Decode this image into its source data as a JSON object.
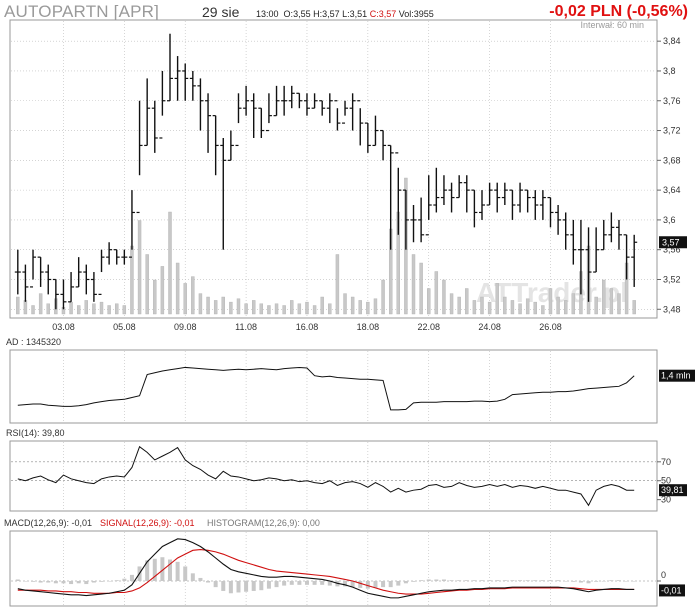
{
  "header": {
    "title": "AUTOPARTN [APR]",
    "date": "29 sie",
    "time": "13:00",
    "open_label": "O:",
    "open": "3,55",
    "high_label": "H:",
    "high": "3,57",
    "low_label": "L:",
    "low": "3,51",
    "close_label": "C:",
    "close": "3,57",
    "volume_label": "Vol:",
    "volume": "3955",
    "change": "-0,02 PLN (-0,56%)",
    "interval": "Interwał: 60 min"
  },
  "watermark": "ATTrader.pl",
  "colors": {
    "price": "#111111",
    "volume": "#c8c8c8",
    "macd_line": "#111111",
    "signal_line": "#d01010",
    "histogram": "#c8c8c8",
    "grid": "#bbbbbb",
    "change_negative": "#e01010"
  },
  "chart_data": [
    {
      "type": "candlestick",
      "name": "price",
      "x_ticks": [
        "03.08",
        "05.08",
        "09.08",
        "11.08",
        "16.08",
        "18.08",
        "22.08",
        "24.08",
        "26.08"
      ],
      "x_tick_positions": [
        6,
        14,
        22,
        30,
        38,
        46,
        54,
        62,
        70
      ],
      "y_ticks": [
        "3,84",
        "3,8",
        "3,76",
        "3,72",
        "3,68",
        "3,64",
        "3,6",
        "3,56",
        "3,52",
        "3,48"
      ],
      "y_tick_values": [
        3.84,
        3.8,
        3.76,
        3.72,
        3.68,
        3.64,
        3.6,
        3.56,
        3.52,
        3.48
      ],
      "ylim": [
        3.475,
        3.855
      ],
      "last_value_label": "3,57",
      "last_value": 3.57,
      "close": [
        3.53,
        3.51,
        3.55,
        3.53,
        3.52,
        3.5,
        3.49,
        3.51,
        3.53,
        3.52,
        3.5,
        3.55,
        3.56,
        3.55,
        3.55,
        3.61,
        3.7,
        3.75,
        3.71,
        3.76,
        3.79,
        3.8,
        3.79,
        3.78,
        3.76,
        3.74,
        3.7,
        3.68,
        3.7,
        3.75,
        3.76,
        3.75,
        3.72,
        3.74,
        3.76,
        3.76,
        3.77,
        3.76,
        3.75,
        3.76,
        3.75,
        3.76,
        3.73,
        3.75,
        3.76,
        3.73,
        3.7,
        3.72,
        3.7,
        3.69,
        3.64,
        3.6,
        3.6,
        3.58,
        3.62,
        3.63,
        3.64,
        3.63,
        3.65,
        3.64,
        3.61,
        3.62,
        3.64,
        3.63,
        3.64,
        3.62,
        3.64,
        3.63,
        3.62,
        3.63,
        3.61,
        3.6,
        3.58,
        3.56,
        3.56,
        3.53,
        3.56,
        3.58,
        3.59,
        3.58,
        3.55,
        3.57
      ],
      "high": [
        3.56,
        3.54,
        3.56,
        3.55,
        3.54,
        3.52,
        3.52,
        3.53,
        3.55,
        3.54,
        3.53,
        3.56,
        3.57,
        3.56,
        3.56,
        3.64,
        3.76,
        3.79,
        3.76,
        3.8,
        3.85,
        3.82,
        3.81,
        3.8,
        3.79,
        3.77,
        3.74,
        3.71,
        3.72,
        3.77,
        3.78,
        3.77,
        3.75,
        3.77,
        3.78,
        3.78,
        3.78,
        3.77,
        3.77,
        3.77,
        3.76,
        3.77,
        3.75,
        3.76,
        3.77,
        3.75,
        3.73,
        3.74,
        3.72,
        3.7,
        3.67,
        3.64,
        3.62,
        3.63,
        3.66,
        3.67,
        3.66,
        3.65,
        3.66,
        3.66,
        3.64,
        3.64,
        3.65,
        3.65,
        3.65,
        3.64,
        3.65,
        3.64,
        3.64,
        3.64,
        3.63,
        3.62,
        3.61,
        3.6,
        3.6,
        3.59,
        3.59,
        3.6,
        3.61,
        3.6,
        3.58,
        3.58
      ],
      "low": [
        3.5,
        3.49,
        3.52,
        3.51,
        3.5,
        3.48,
        3.48,
        3.49,
        3.51,
        3.5,
        3.49,
        3.53,
        3.54,
        3.54,
        3.54,
        3.56,
        3.66,
        3.7,
        3.69,
        3.74,
        3.76,
        3.76,
        3.76,
        3.76,
        3.72,
        3.69,
        3.66,
        3.56,
        3.68,
        3.73,
        3.74,
        3.71,
        3.71,
        3.73,
        3.74,
        3.74,
        3.75,
        3.75,
        3.74,
        3.75,
        3.74,
        3.73,
        3.72,
        3.74,
        3.72,
        3.7,
        3.69,
        3.7,
        3.68,
        3.56,
        3.58,
        3.56,
        3.57,
        3.57,
        3.6,
        3.61,
        3.62,
        3.61,
        3.63,
        3.61,
        3.59,
        3.6,
        3.62,
        3.61,
        3.62,
        3.6,
        3.61,
        3.61,
        3.6,
        3.6,
        3.59,
        3.58,
        3.56,
        3.54,
        3.5,
        3.49,
        3.53,
        3.56,
        3.57,
        3.56,
        3.52,
        3.51
      ],
      "volume": [
        0.1,
        0.08,
        0.05,
        0.12,
        0.06,
        0.09,
        0.04,
        0.07,
        0.05,
        0.08,
        0.06,
        0.07,
        0.05,
        0.06,
        0.05,
        0.4,
        0.55,
        0.35,
        0.2,
        0.28,
        0.6,
        0.3,
        0.18,
        0.22,
        0.12,
        0.1,
        0.08,
        0.1,
        0.07,
        0.09,
        0.06,
        0.08,
        0.06,
        0.05,
        0.06,
        0.05,
        0.08,
        0.06,
        0.07,
        0.05,
        0.1,
        0.06,
        0.35,
        0.12,
        0.1,
        0.08,
        0.07,
        0.09,
        0.2,
        0.5,
        0.6,
        0.8,
        0.35,
        0.3,
        0.15,
        0.25,
        0.2,
        0.12,
        0.1,
        0.15,
        0.08,
        0.1,
        0.07,
        0.18,
        0.1,
        0.08,
        0.06,
        0.09,
        0.07,
        0.05,
        0.15,
        0.1,
        0.08,
        0.12,
        0.25,
        0.4,
        0.1,
        0.2,
        0.15,
        0.12,
        0.3,
        0.08
      ],
      "volume_scale_note": ""
    },
    {
      "type": "line",
      "name": "AD",
      "label": "AD : 1345320",
      "last_value_label": "1,4 mln",
      "ylim": [
        0,
        1
      ],
      "values": [
        0.2,
        0.21,
        0.22,
        0.22,
        0.2,
        0.19,
        0.18,
        0.18,
        0.19,
        0.21,
        0.24,
        0.26,
        0.28,
        0.29,
        0.3,
        0.33,
        0.36,
        0.72,
        0.75,
        0.78,
        0.8,
        0.82,
        0.84,
        0.83,
        0.82,
        0.81,
        0.8,
        0.79,
        0.8,
        0.81,
        0.8,
        0.81,
        0.82,
        0.81,
        0.8,
        0.82,
        0.83,
        0.84,
        0.83,
        0.7,
        0.68,
        0.69,
        0.67,
        0.66,
        0.65,
        0.64,
        0.64,
        0.63,
        0.62,
        0.12,
        0.12,
        0.13,
        0.24,
        0.25,
        0.25,
        0.25,
        0.26,
        0.26,
        0.26,
        0.26,
        0.27,
        0.27,
        0.26,
        0.27,
        0.3,
        0.38,
        0.39,
        0.4,
        0.41,
        0.42,
        0.42,
        0.43,
        0.43,
        0.44,
        0.46,
        0.48,
        0.49,
        0.5,
        0.51,
        0.52,
        0.58,
        0.7
      ]
    },
    {
      "type": "line",
      "name": "RSI(14)",
      "label": "RSI(14): 39,80",
      "last_value_label": "39,81",
      "y_ticks": [
        "70",
        "50",
        "30"
      ],
      "y_tick_values": [
        70,
        50,
        30
      ],
      "ylim": [
        18,
        92
      ],
      "values": [
        52,
        50,
        53,
        55,
        51,
        48,
        56,
        52,
        50,
        48,
        47,
        52,
        54,
        55,
        54,
        64,
        86,
        80,
        72,
        76,
        80,
        85,
        72,
        66,
        62,
        56,
        52,
        60,
        55,
        54,
        52,
        50,
        51,
        53,
        52,
        50,
        51,
        49,
        50,
        48,
        47,
        50,
        45,
        48,
        49,
        47,
        43,
        48,
        44,
        38,
        42,
        38,
        40,
        41,
        45,
        46,
        43,
        44,
        48,
        45,
        43,
        44,
        46,
        44,
        46,
        43,
        45,
        44,
        42,
        44,
        42,
        40,
        40,
        38,
        36,
        24,
        40,
        44,
        46,
        44,
        40,
        40
      ]
    },
    {
      "type": "line",
      "name": "MACD(12,26,9)",
      "label": "MACD(12,26,9): -0,01",
      "signal_label": "SIGNAL(12,26,9): -0,01",
      "histogram_label": "HISTOGRAM(12,26,9): 0,00",
      "last_value_label": "-0,01",
      "y_ticks": [
        "0"
      ],
      "y_tick_values": [
        0
      ],
      "ylim": [
        -0.03,
        0.06
      ],
      "macd": [
        -0.01,
        -0.012,
        -0.013,
        -0.014,
        -0.015,
        -0.016,
        -0.017,
        -0.018,
        -0.018,
        -0.019,
        -0.018,
        -0.017,
        -0.016,
        -0.014,
        -0.012,
        -0.005,
        0.01,
        0.025,
        0.035,
        0.045,
        0.05,
        0.055,
        0.054,
        0.05,
        0.045,
        0.038,
        0.03,
        0.022,
        0.015,
        0.012,
        0.01,
        0.008,
        0.006,
        0.005,
        0.005,
        0.006,
        0.006,
        0.005,
        0.004,
        0.003,
        0.002,
        0.0,
        -0.003,
        -0.005,
        -0.008,
        -0.012,
        -0.016,
        -0.018,
        -0.02,
        -0.022,
        -0.022,
        -0.02,
        -0.018,
        -0.016,
        -0.014,
        -0.013,
        -0.012,
        -0.012,
        -0.011,
        -0.011,
        -0.01,
        -0.01,
        -0.009,
        -0.009,
        -0.009,
        -0.008,
        -0.008,
        -0.008,
        -0.008,
        -0.008,
        -0.008,
        -0.008,
        -0.009,
        -0.01,
        -0.012,
        -0.014,
        -0.012,
        -0.011,
        -0.01,
        -0.01,
        -0.011,
        -0.011
      ],
      "signal": [
        -0.012,
        -0.012,
        -0.012,
        -0.012,
        -0.013,
        -0.013,
        -0.014,
        -0.014,
        -0.015,
        -0.015,
        -0.016,
        -0.016,
        -0.016,
        -0.015,
        -0.015,
        -0.013,
        -0.009,
        -0.002,
        0.006,
        0.014,
        0.022,
        0.03,
        0.035,
        0.04,
        0.041,
        0.04,
        0.038,
        0.035,
        0.031,
        0.027,
        0.024,
        0.021,
        0.018,
        0.015,
        0.013,
        0.012,
        0.011,
        0.01,
        0.009,
        0.008,
        0.007,
        0.006,
        0.004,
        0.002,
        0.0,
        -0.003,
        -0.006,
        -0.009,
        -0.012,
        -0.014,
        -0.016,
        -0.017,
        -0.017,
        -0.017,
        -0.016,
        -0.015,
        -0.014,
        -0.013,
        -0.012,
        -0.012,
        -0.011,
        -0.011,
        -0.01,
        -0.01,
        -0.01,
        -0.009,
        -0.009,
        -0.009,
        -0.009,
        -0.009,
        -0.009,
        -0.009,
        -0.009,
        -0.009,
        -0.01,
        -0.011,
        -0.011,
        -0.011,
        -0.011,
        -0.011,
        -0.011,
        -0.011
      ],
      "histogram": [
        0.002,
        0.0,
        -0.001,
        -0.002,
        -0.002,
        -0.003,
        -0.003,
        -0.004,
        -0.003,
        -0.004,
        -0.002,
        -0.001,
        0.0,
        0.001,
        0.003,
        0.008,
        0.019,
        0.027,
        0.029,
        0.031,
        0.028,
        0.025,
        0.019,
        0.01,
        0.004,
        -0.002,
        -0.008,
        -0.013,
        -0.016,
        -0.015,
        -0.014,
        -0.013,
        -0.012,
        -0.01,
        -0.008,
        -0.006,
        -0.005,
        -0.005,
        -0.005,
        -0.005,
        -0.005,
        -0.006,
        -0.007,
        -0.007,
        -0.008,
        -0.009,
        -0.01,
        -0.009,
        -0.008,
        -0.008,
        -0.006,
        -0.003,
        -0.001,
        0.001,
        0.002,
        0.002,
        0.002,
        0.001,
        0.001,
        0.001,
        0.001,
        0.001,
        0.001,
        0.001,
        0.001,
        0.001,
        0.001,
        0.001,
        0.001,
        0.001,
        0.001,
        0.001,
        0.0,
        -0.001,
        -0.002,
        -0.003,
        -0.001,
        0.0,
        0.001,
        0.001,
        0.0,
        0.0
      ]
    }
  ]
}
